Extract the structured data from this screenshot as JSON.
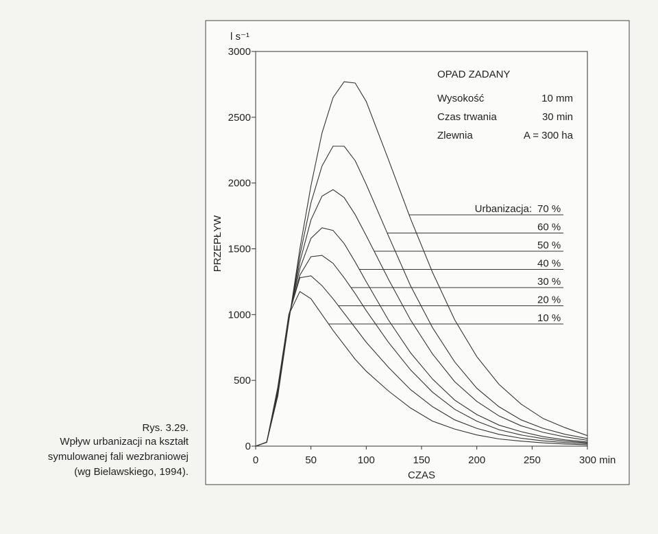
{
  "caption": [
    "Rys. 3.29.",
    "Wpływ urbanizacji na kształt",
    "symulowanej fali wezbraniowej",
    "(wg Bielawskiego, 1994)."
  ],
  "chart_data": {
    "type": "line",
    "y_unit": "l s⁻¹",
    "ylabel": "PRZEPŁYW",
    "xlabel": "CZAS",
    "xlim": [
      0,
      300
    ],
    "ylim": [
      0,
      3000
    ],
    "xticks": [
      0,
      50,
      100,
      150,
      200,
      250,
      {
        "value": 300,
        "label": "300 min"
      }
    ],
    "yticks": [
      0,
      500,
      1000,
      1500,
      2000,
      2500,
      3000
    ],
    "info_box": {
      "title": "OPAD ZADANY",
      "rows": [
        [
          "Wysokość",
          "10 mm"
        ],
        [
          "Czas trwania",
          "30 min"
        ],
        [
          "Zlewnia",
          "A = 300 ha"
        ]
      ]
    },
    "legend_title": "Urbanizacja:",
    "x": [
      0,
      10,
      20,
      30,
      40,
      50,
      60,
      70,
      80,
      90,
      100,
      120,
      140,
      160,
      180,
      200,
      220,
      240,
      260,
      280,
      300
    ],
    "series": [
      {
        "name": "70 %",
        "color": "#333333",
        "values": [
          0,
          30,
          380,
          950,
          1500,
          1980,
          2380,
          2650,
          2770,
          2760,
          2620,
          2180,
          1730,
          1320,
          960,
          680,
          470,
          320,
          210,
          140,
          80
        ]
      },
      {
        "name": "60 %",
        "color": "#333333",
        "values": [
          0,
          30,
          390,
          960,
          1450,
          1850,
          2130,
          2280,
          2280,
          2170,
          1990,
          1600,
          1220,
          900,
          640,
          440,
          300,
          200,
          135,
          90,
          58
        ]
      },
      {
        "name": "50 %",
        "color": "#333333",
        "values": [
          0,
          30,
          400,
          970,
          1400,
          1720,
          1900,
          1950,
          1890,
          1760,
          1600,
          1270,
          960,
          700,
          490,
          340,
          230,
          155,
          105,
          70,
          45
        ]
      },
      {
        "name": "40 %",
        "color": "#333333",
        "values": [
          0,
          30,
          410,
          980,
          1350,
          1580,
          1660,
          1640,
          1540,
          1400,
          1250,
          960,
          710,
          510,
          350,
          240,
          160,
          110,
          72,
          48,
          32
        ]
      },
      {
        "name": "30 %",
        "color": "#333333",
        "values": [
          0,
          30,
          420,
          990,
          1300,
          1440,
          1450,
          1390,
          1280,
          1160,
          1030,
          790,
          580,
          410,
          280,
          190,
          125,
          85,
          57,
          38,
          25
        ]
      },
      {
        "name": "20 %",
        "color": "#333333",
        "values": [
          0,
          30,
          430,
          1000,
          1280,
          1295,
          1220,
          1120,
          1010,
          900,
          790,
          600,
          430,
          300,
          200,
          135,
          90,
          60,
          40,
          27,
          18
        ]
      },
      {
        "name": "10 %",
        "color": "#333333",
        "values": [
          0,
          30,
          450,
          1000,
          1175,
          1120,
          1000,
          880,
          770,
          660,
          570,
          420,
          290,
          190,
          130,
          85,
          55,
          38,
          25,
          16,
          10
        ]
      }
    ]
  }
}
